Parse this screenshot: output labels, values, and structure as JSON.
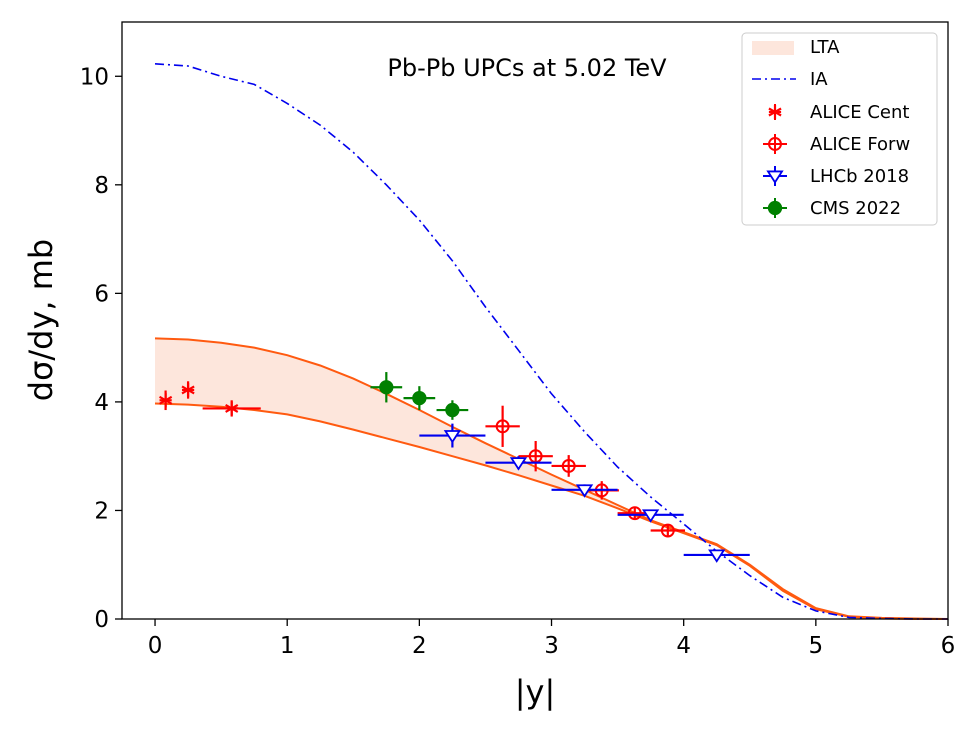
{
  "chart_data": {
    "type": "scatter",
    "annotation": "Pb-Pb UPCs at 5.02 TeV",
    "xlabel": "|y|",
    "ylabel": "dσ/dy, mb",
    "xlim": [
      -0.25,
      6.0
    ],
    "ylim": [
      0,
      11
    ],
    "xticks": [
      0,
      1,
      2,
      3,
      4,
      5,
      6
    ],
    "yticks": [
      0,
      2,
      4,
      6,
      8,
      10
    ],
    "xtick_labels": [
      "0",
      "1",
      "2",
      "3",
      "4",
      "5",
      "6"
    ],
    "ytick_labels": [
      "0",
      "2",
      "4",
      "6",
      "8",
      "10"
    ],
    "legend_position": "top-right",
    "colors": {
      "lta_line": "#ff5a10",
      "lta_fill": "#fde6dc",
      "ia": "#0000ee",
      "alice_cent": "#ff0000",
      "alice_forw": "#ff0000",
      "lhcb": "#0000ee",
      "cms": "#008000"
    },
    "lta_band": {
      "x": [
        0,
        0.25,
        0.5,
        0.75,
        1.0,
        1.25,
        1.5,
        1.75,
        2.0,
        2.25,
        2.5,
        2.75,
        3.0,
        3.25,
        3.5,
        3.75,
        4.0,
        4.25,
        4.5,
        4.75,
        5.0,
        5.25,
        5.5,
        5.75,
        6.0
      ],
      "upper": [
        5.17,
        5.15,
        5.09,
        5.0,
        4.86,
        4.67,
        4.43,
        4.15,
        3.85,
        3.54,
        3.24,
        2.95,
        2.66,
        2.38,
        2.1,
        1.82,
        1.6,
        1.38,
        1.0,
        0.55,
        0.2,
        0.05,
        0.02,
        0.01,
        0.0
      ],
      "lower": [
        3.97,
        3.95,
        3.91,
        3.85,
        3.77,
        3.64,
        3.49,
        3.33,
        3.17,
        3.0,
        2.83,
        2.65,
        2.46,
        2.27,
        2.04,
        1.8,
        1.58,
        1.36,
        0.98,
        0.52,
        0.18,
        0.04,
        0.01,
        0.0,
        0.0
      ]
    },
    "ia_curve": {
      "x": [
        0,
        0.25,
        0.5,
        0.75,
        1.0,
        1.25,
        1.5,
        1.75,
        2.0,
        2.25,
        2.5,
        2.75,
        3.0,
        3.25,
        3.5,
        3.75,
        4.0,
        4.25,
        4.5,
        4.75,
        5.0,
        5.25,
        5.5,
        5.75,
        6.0
      ],
      "y": [
        10.23,
        10.19,
        10.0,
        9.85,
        9.5,
        9.1,
        8.6,
        8.0,
        7.35,
        6.6,
        5.75,
        4.95,
        4.15,
        3.45,
        2.8,
        2.25,
        1.75,
        1.25,
        0.8,
        0.4,
        0.15,
        0.03,
        0.01,
        0.0,
        0.0
      ]
    },
    "series": [
      {
        "name": "ALICE Cent",
        "marker": "star",
        "color": "#ff0000",
        "points": [
          {
            "x": 0.08,
            "y": 4.03,
            "xerr": 0.0,
            "yerr": 0.18
          },
          {
            "x": 0.25,
            "y": 4.22,
            "xerr": 0.0,
            "yerr": 0.16
          },
          {
            "x": 0.58,
            "y": 3.88,
            "xerr": 0.22,
            "yerr": 0.15
          }
        ]
      },
      {
        "name": "ALICE Forw",
        "marker": "open-circle-plus",
        "color": "#ff0000",
        "points": [
          {
            "x": 2.63,
            "y": 3.55,
            "xerr": 0.13,
            "yerr": 0.38
          },
          {
            "x": 2.88,
            "y": 3.0,
            "xerr": 0.13,
            "yerr": 0.28
          },
          {
            "x": 3.13,
            "y": 2.82,
            "xerr": 0.13,
            "yerr": 0.2
          },
          {
            "x": 3.38,
            "y": 2.37,
            "xerr": 0.13,
            "yerr": 0.17
          },
          {
            "x": 3.63,
            "y": 1.95,
            "xerr": 0.13,
            "yerr": 0.12
          },
          {
            "x": 3.88,
            "y": 1.63,
            "xerr": 0.13,
            "yerr": 0.1
          }
        ]
      },
      {
        "name": "LHCb 2018",
        "marker": "open-triangle-down",
        "color": "#0000ee",
        "points": [
          {
            "x": 2.25,
            "y": 3.38,
            "xerr": 0.25,
            "yerr": 0.22
          },
          {
            "x": 2.75,
            "y": 2.88,
            "xerr": 0.25,
            "yerr": 0.12
          },
          {
            "x": 3.25,
            "y": 2.38,
            "xerr": 0.25,
            "yerr": 0.1
          },
          {
            "x": 3.75,
            "y": 1.92,
            "xerr": 0.25,
            "yerr": 0.08
          },
          {
            "x": 4.25,
            "y": 1.18,
            "xerr": 0.25,
            "yerr": 0.07
          }
        ]
      },
      {
        "name": "CMS 2022",
        "marker": "filled-circle",
        "color": "#008000",
        "points": [
          {
            "x": 1.75,
            "y": 4.27,
            "xerr": 0.12,
            "yerr": 0.28
          },
          {
            "x": 2.0,
            "y": 4.07,
            "xerr": 0.12,
            "yerr": 0.22
          },
          {
            "x": 2.25,
            "y": 3.85,
            "xerr": 0.12,
            "yerr": 0.18
          }
        ]
      }
    ],
    "legend": [
      "LTA",
      "IA",
      "ALICE Cent",
      "ALICE Forw",
      "LHCb 2018",
      "CMS 2022"
    ]
  }
}
